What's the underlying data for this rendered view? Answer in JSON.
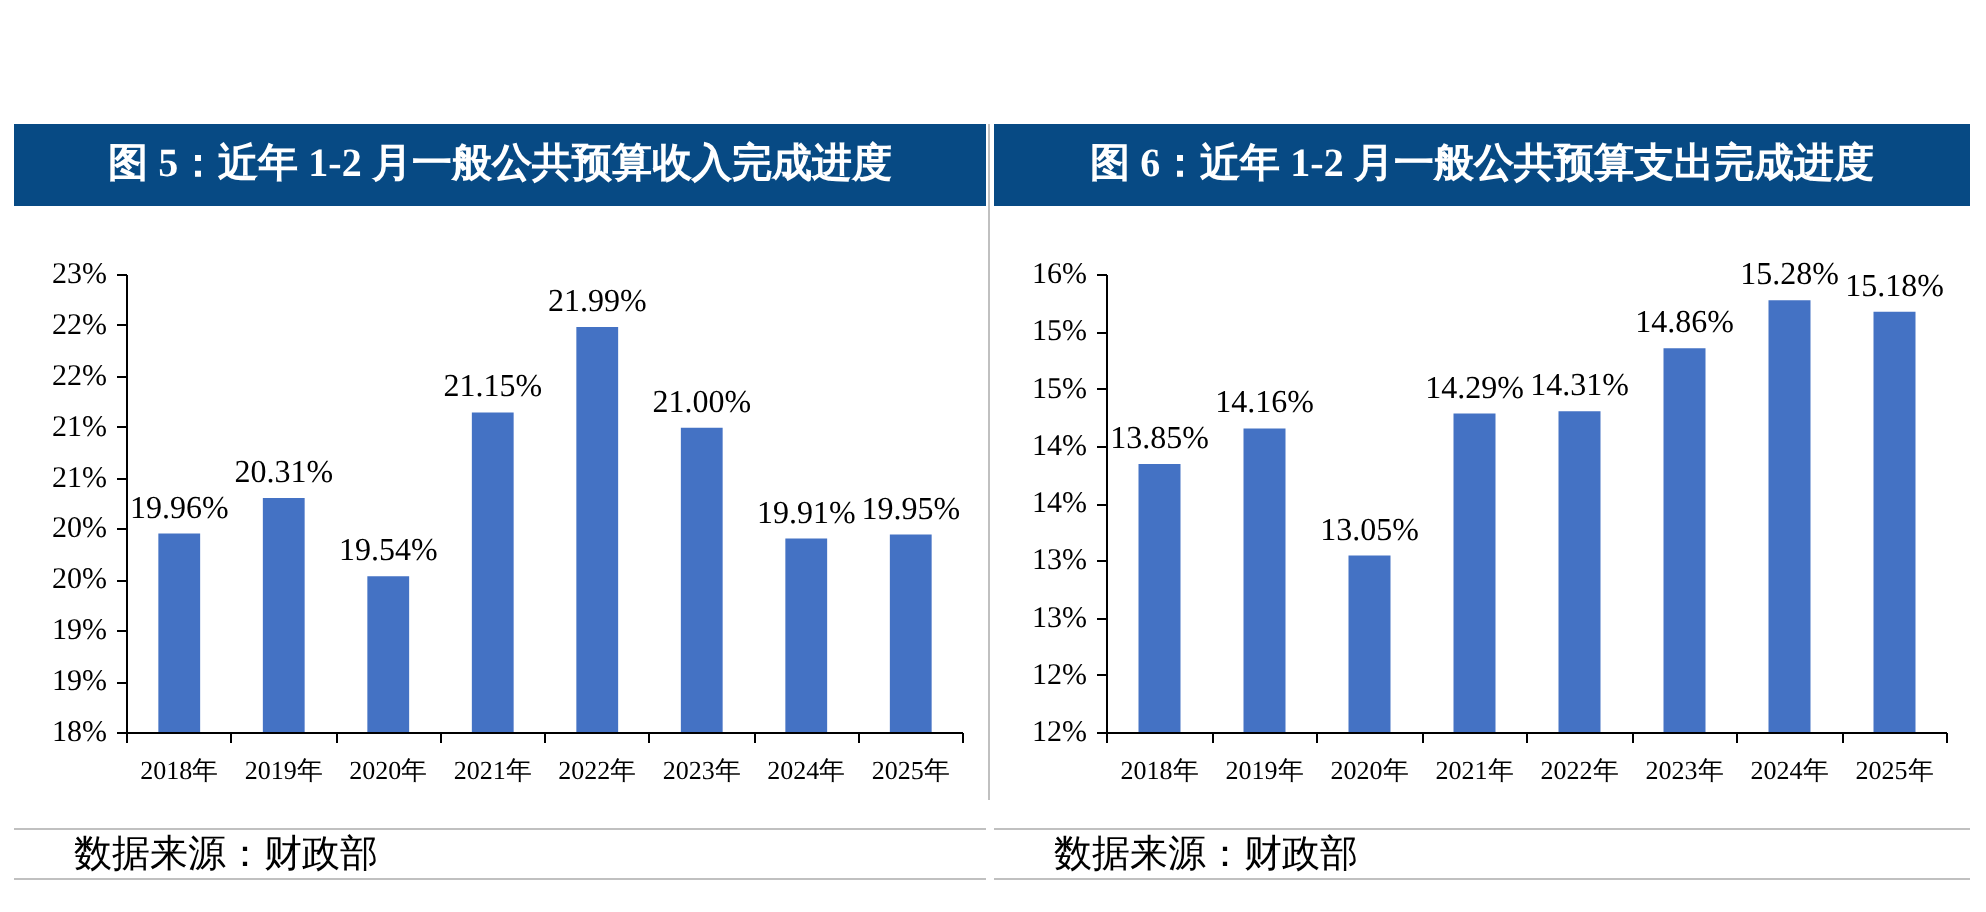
{
  "chart_data": [
    {
      "type": "bar",
      "title": "图 5：近年 1-2 月一般公共预算收入完成进度",
      "categories": [
        "2018年",
        "2019年",
        "2020年",
        "2021年",
        "2022年",
        "2023年",
        "2024年",
        "2025年"
      ],
      "values": [
        19.96,
        20.31,
        19.54,
        21.15,
        21.99,
        21.0,
        19.91,
        19.95
      ],
      "value_labels": [
        "19.96%",
        "20.31%",
        "19.54%",
        "21.15%",
        "21.99%",
        "21.00%",
        "19.91%",
        "19.95%"
      ],
      "color": "#4472c4",
      "ylim": [
        18,
        22.5
      ],
      "yticks": [
        {
          "value": 18,
          "label": "18%"
        },
        {
          "value": 18.5,
          "label": "19%"
        },
        {
          "value": 19,
          "label": "19%"
        },
        {
          "value": 19.5,
          "label": "20%"
        },
        {
          "value": 20,
          "label": "20%"
        },
        {
          "value": 20.5,
          "label": "21%"
        },
        {
          "value": 21,
          "label": "21%"
        },
        {
          "value": 21.5,
          "label": "22%"
        },
        {
          "value": 22,
          "label": "22%"
        },
        {
          "value": 22.5,
          "label": "23%"
        }
      ],
      "annotations": [
        "数据来源：财政部"
      ]
    },
    {
      "type": "bar",
      "title": "图 6：近年 1-2 月一般公共预算支出完成进度",
      "categories": [
        "2018年",
        "2019年",
        "2020年",
        "2021年",
        "2022年",
        "2023年",
        "2024年",
        "2025年"
      ],
      "values": [
        13.85,
        14.16,
        13.05,
        14.29,
        14.31,
        14.86,
        15.28,
        15.18
      ],
      "value_labels": [
        "13.85%",
        "14.16%",
        "13.05%",
        "14.29%",
        "14.31%",
        "14.86%",
        "15.28%",
        "15.18%"
      ],
      "color": "#4472c4",
      "ylim": [
        11.5,
        15.5
      ],
      "yticks": [
        {
          "value": 11.5,
          "label": "12%"
        },
        {
          "value": 12,
          "label": "12%"
        },
        {
          "value": 12.5,
          "label": "13%"
        },
        {
          "value": 13,
          "label": "13%"
        },
        {
          "value": 13.5,
          "label": "14%"
        },
        {
          "value": 14,
          "label": "14%"
        },
        {
          "value": 14.5,
          "label": "15%"
        },
        {
          "value": 15,
          "label": "15%"
        },
        {
          "value": 15.5,
          "label": "16%"
        }
      ],
      "annotations": [
        "数据来源：财政部"
      ]
    }
  ]
}
